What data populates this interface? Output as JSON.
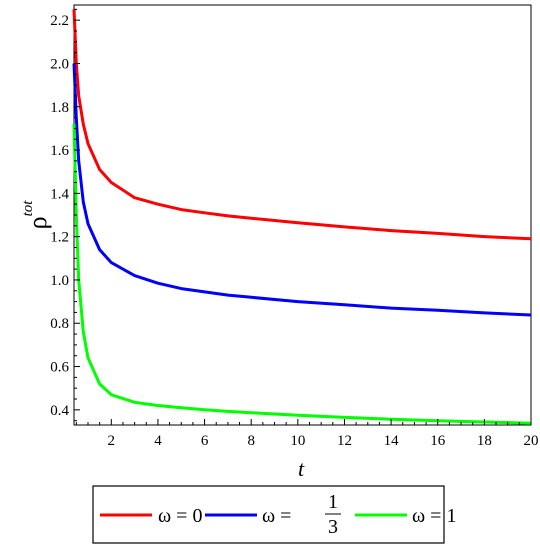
{
  "chart_data": {
    "type": "line",
    "xlabel": "t",
    "ylabel": {
      "symbol": "ρ",
      "superscript": "tot"
    },
    "xlim": [
      0.4,
      20
    ],
    "ylim": [
      0.33,
      2.27
    ],
    "x_ticks": [
      2,
      4,
      6,
      8,
      10,
      12,
      14,
      16,
      18,
      20
    ],
    "x_tick_labels": [
      "2",
      "4",
      "6",
      "8",
      "10",
      "12",
      "14",
      "16",
      "18",
      "20"
    ],
    "y_ticks": [
      0.4,
      0.6,
      0.8,
      1.0,
      1.2,
      1.4,
      1.6,
      1.8,
      2.0,
      2.2
    ],
    "y_tick_labels": [
      "0.4",
      "0.6",
      "0.8",
      "1.0",
      "1.2",
      "1.4",
      "1.6",
      "1.8",
      "2.0",
      "2.2"
    ],
    "grid": false,
    "legend_position": "bottom",
    "series": [
      {
        "name": "ω = 0",
        "legend": {
          "prefix": "ω = ",
          "value": "0"
        },
        "color": "#ff0000",
        "x": [
          0.4,
          0.5,
          0.6,
          0.8,
          1.0,
          1.5,
          2,
          3,
          4,
          5,
          6,
          7,
          8,
          10,
          12,
          14,
          16,
          18,
          20
        ],
        "y": [
          2.25,
          2.0,
          1.85,
          1.72,
          1.63,
          1.51,
          1.45,
          1.38,
          1.35,
          1.325,
          1.31,
          1.296,
          1.285,
          1.264,
          1.245,
          1.228,
          1.215,
          1.2,
          1.19
        ]
      },
      {
        "name": "ω = 1/3",
        "legend": {
          "prefix": "ω = ",
          "numerator": "1",
          "denominator": "3"
        },
        "color": "#0000ff",
        "x": [
          0.4,
          0.5,
          0.6,
          0.8,
          1.0,
          1.5,
          2,
          3,
          4,
          5,
          6,
          7,
          8,
          10,
          12,
          14,
          16,
          18,
          20
        ],
        "y": [
          2.0,
          1.75,
          1.55,
          1.36,
          1.26,
          1.14,
          1.08,
          1.02,
          0.985,
          0.96,
          0.945,
          0.93,
          0.92,
          0.9,
          0.885,
          0.87,
          0.86,
          0.848,
          0.838
        ]
      },
      {
        "name": "ω = 1",
        "legend": {
          "prefix": "ω = ",
          "value": "1"
        },
        "color": "#00ff00",
        "x": [
          0.4,
          0.5,
          0.6,
          0.8,
          1.0,
          1.5,
          2,
          3,
          4,
          5,
          6,
          7,
          8,
          10,
          12,
          14,
          16,
          18,
          20
        ],
        "y": [
          1.72,
          1.3,
          1.0,
          0.76,
          0.64,
          0.52,
          0.47,
          0.435,
          0.42,
          0.41,
          0.4,
          0.393,
          0.387,
          0.375,
          0.365,
          0.357,
          0.35,
          0.344,
          0.338
        ]
      }
    ]
  }
}
